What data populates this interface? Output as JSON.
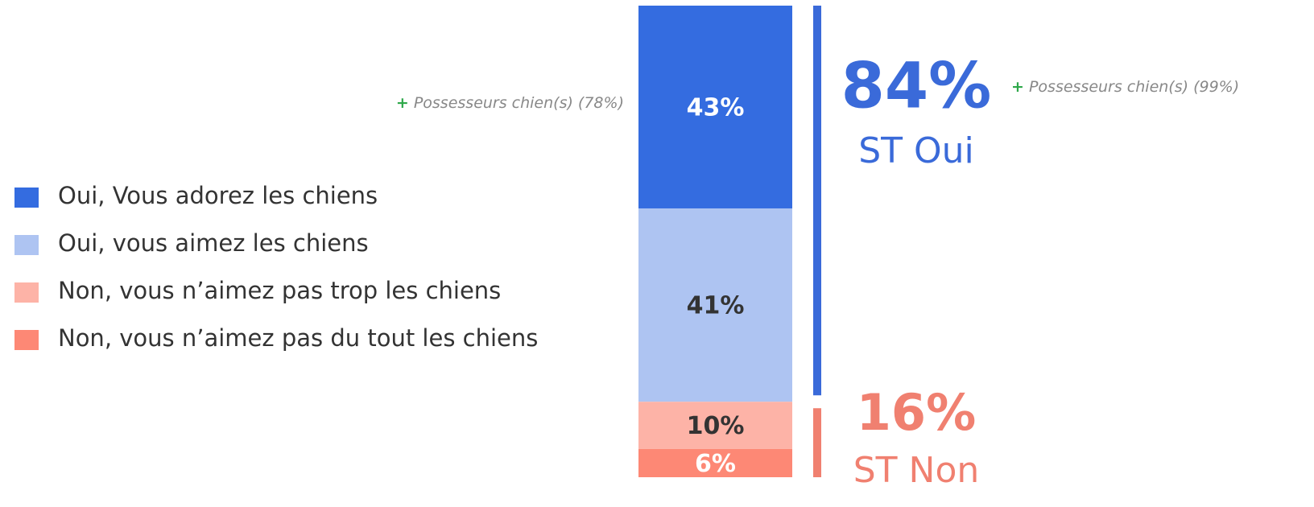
{
  "chart_data": {
    "type": "stacked_bar",
    "series": [
      {
        "name": "Oui, Vous adorez les chiens",
        "color": "#346ce0",
        "values": [
          43
        ],
        "value_labels": [
          "43%"
        ]
      },
      {
        "name": "Oui, vous aimez les chiens",
        "color": "#aec4f2",
        "values": [
          41
        ],
        "value_labels": [
          "41%"
        ]
      },
      {
        "name": "Non, vous n’aimez pas trop les chiens",
        "color": "#fdb3a7",
        "values": [
          10
        ],
        "value_labels": [
          "10%"
        ]
      },
      {
        "name": "Non, vous n’aimez pas du tout les chiens",
        "color": "#fd8875",
        "values": [
          6
        ],
        "value_labels": [
          "6%"
        ]
      }
    ],
    "subtotals": [
      {
        "label": "ST Oui",
        "value": 84,
        "value_label": "84%",
        "color": "#3a6ad9",
        "series": [
          0,
          1
        ]
      },
      {
        "label": "ST Non",
        "value": 16,
        "value_label": "16%",
        "color": "#f08070",
        "series": [
          2,
          3
        ]
      }
    ],
    "annotations": [
      {
        "marker": "+",
        "text": "Possesseurs chien(s) (78%)"
      },
      {
        "marker": "+",
        "text": "Possesseurs chien(s) (99%)"
      }
    ],
    "legend": "left"
  }
}
